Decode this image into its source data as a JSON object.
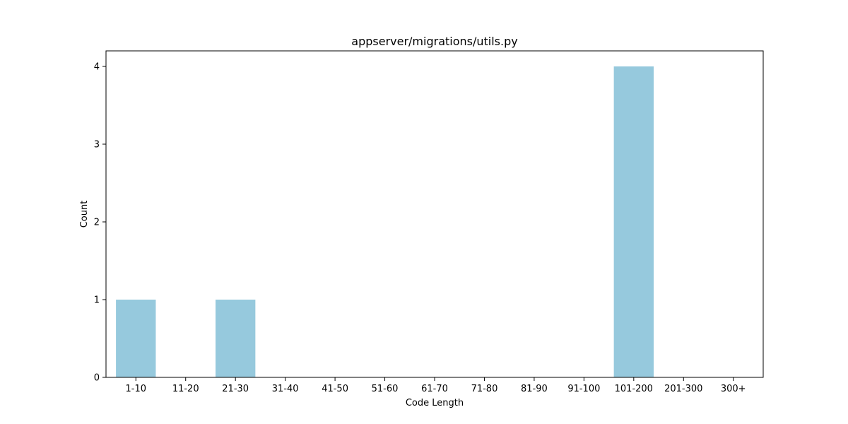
{
  "chart_data": {
    "type": "bar",
    "title": "appserver/migrations/utils.py",
    "xlabel": "Code Length",
    "ylabel": "Count",
    "categories": [
      "1-10",
      "11-20",
      "21-30",
      "31-40",
      "41-50",
      "51-60",
      "61-70",
      "71-80",
      "81-90",
      "91-100",
      "101-200",
      "201-300",
      "300+"
    ],
    "values": [
      1,
      0,
      1,
      0,
      0,
      0,
      0,
      0,
      0,
      0,
      4,
      0,
      0
    ],
    "ylim": [
      0,
      4.2
    ],
    "yticks": [
      "0",
      "1",
      "2",
      "3",
      "4"
    ],
    "grid": false,
    "legend": "none",
    "bar_color": "#96c9dd"
  }
}
